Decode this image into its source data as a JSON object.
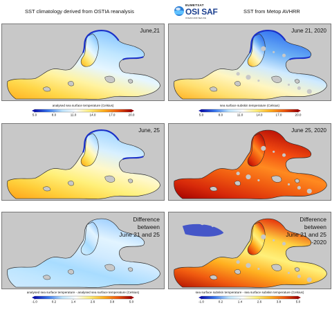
{
  "header": {
    "left_title": "SST climatology derived from OSTIA reanalysis",
    "right_title": "SST from Metop AVHRR",
    "logo": {
      "top": "EUMETSAT",
      "brand": "OSI SAF",
      "sub": "OCEAN AND SEA ICE",
      "icon": "globe-icon"
    }
  },
  "panels": [
    {
      "id": "p1",
      "label": "June,21",
      "kind": "clim_cool"
    },
    {
      "id": "p2",
      "label": "June 21, 2020",
      "kind": "obs_cool"
    },
    {
      "id": "p3",
      "label": "June, 25",
      "kind": "clim_warm"
    },
    {
      "id": "p4",
      "label": "June 25, 2020",
      "kind": "obs_warm"
    },
    {
      "id": "p5",
      "label": "Difference\nbetween\nJune 21 and 25",
      "kind": "diff_clim"
    },
    {
      "id": "p6",
      "label": "Difference\nbetween\nJune 21 and 25\n-2020",
      "kind": "diff_obs"
    }
  ],
  "colorbars": [
    {
      "id": "cb1",
      "title": "analysed sea surface temperature (Celsius)",
      "ticks": [
        "5.0",
        "8.0",
        "11.0",
        "14.0",
        "17.0",
        "20.0"
      ]
    },
    {
      "id": "cb2",
      "title": "sea surface subskin temperature (Celsius)",
      "ticks": [
        "5.0",
        "8.0",
        "11.0",
        "14.0",
        "17.0",
        "20.0"
      ]
    },
    {
      "id": "cb3",
      "title": "analysed sea surface temperature - analysed sea surface temperature (Celsius)",
      "ticks": [
        "-1.0",
        "0.2",
        "1.4",
        "2.6",
        "3.8",
        "5.0"
      ]
    },
    {
      "id": "cb4",
      "title": "sea surface subskin temperature - sea surface subskin temperature (Celsius)",
      "ticks": [
        "-1.0",
        "0.2",
        "1.4",
        "2.6",
        "3.8",
        "5.0"
      ]
    }
  ],
  "colors": {
    "land": "#c8c8c8",
    "coast": "#2a2a2a",
    "temp_scale": [
      "#0a10b0",
      "#3a7af0",
      "#bfe6ff",
      "#ffffff",
      "#fff07a",
      "#ffb020",
      "#f05a10",
      "#a00000"
    ],
    "diff_scale": [
      "#0a10b0",
      "#3a7af0",
      "#bfe6ff",
      "#ffffff",
      "#fff07a",
      "#ffb020",
      "#f05a10",
      "#a00000"
    ]
  }
}
